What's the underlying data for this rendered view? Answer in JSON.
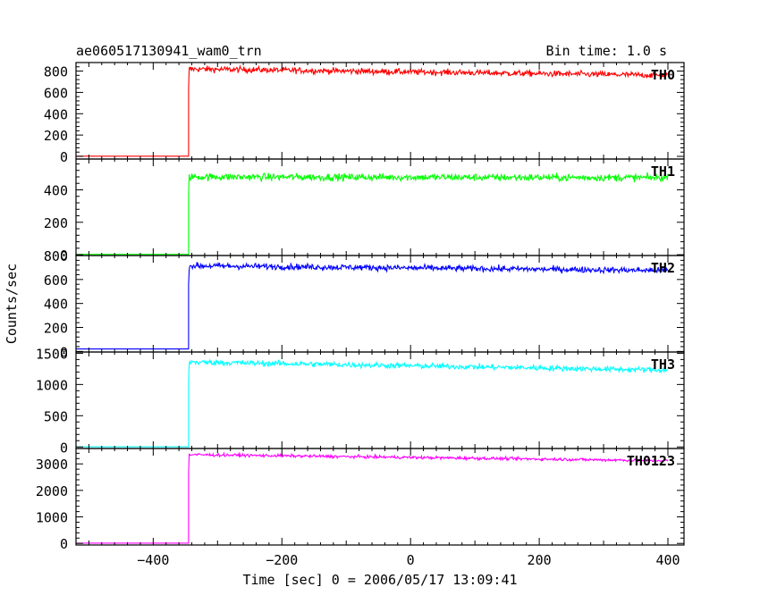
{
  "header": {
    "title": "ae060517130941_wam0_trn",
    "bin_time": "Bin time: 1.0 s"
  },
  "chart_data": {
    "type": "line",
    "ylabel": "Counts/sec",
    "xlabel": "Time [sec] 0 = 2006/05/17 13:09:41",
    "xlim": [
      -520,
      425
    ],
    "x_ticks": [
      -400,
      -200,
      0,
      200,
      400
    ],
    "x_tick_labels": [
      "−400",
      "−200",
      "0",
      "200",
      "400"
    ],
    "onset_time": -345,
    "end_time": 400,
    "start_time": -520,
    "panels": [
      {
        "name": "TH0",
        "color": "#ff0000",
        "ylim": [
          -25,
          880
        ],
        "yticks": [
          0,
          200,
          400,
          600,
          800
        ],
        "ytick_labels": [
          "0",
          "200",
          "400",
          "600",
          "800"
        ],
        "pre_level": 2,
        "level_start": 820,
        "level_end": 760,
        "noise": 28
      },
      {
        "name": "TH1",
        "color": "#00ff00",
        "ylim": [
          -5,
          590
        ],
        "yticks": [
          0,
          200,
          400
        ],
        "ytick_labels": [
          "0",
          "200",
          "400"
        ],
        "pre_level": 2,
        "level_start": 480,
        "level_end": 475,
        "noise": 22
      },
      {
        "name": "TH2",
        "color": "#0000ff",
        "ylim": [
          -5,
          800
        ],
        "yticks": [
          0,
          200,
          400,
          600,
          800
        ],
        "ytick_labels": [
          "0",
          "200",
          "400",
          "600",
          "800"
        ],
        "pre_level": 20,
        "level_start": 715,
        "level_end": 675,
        "noise": 25
      },
      {
        "name": "TH3",
        "color": "#00ffff",
        "ylim": [
          -25,
          1520
        ],
        "yticks": [
          0,
          500,
          1000,
          1500
        ],
        "ytick_labels": [
          "0",
          "500",
          "1000",
          "1500"
        ],
        "pre_level": 2,
        "level_start": 1360,
        "level_end": 1230,
        "noise": 45
      },
      {
        "name": "TH0123",
        "color": "#ff00ff",
        "ylim": [
          -60,
          3580
        ],
        "yticks": [
          0,
          1000,
          2000,
          3000
        ],
        "ytick_labels": [
          "0",
          "1000",
          "2000",
          "3000"
        ],
        "pre_level": 10,
        "level_start": 3350,
        "level_end": 3120,
        "noise": 55
      }
    ]
  }
}
